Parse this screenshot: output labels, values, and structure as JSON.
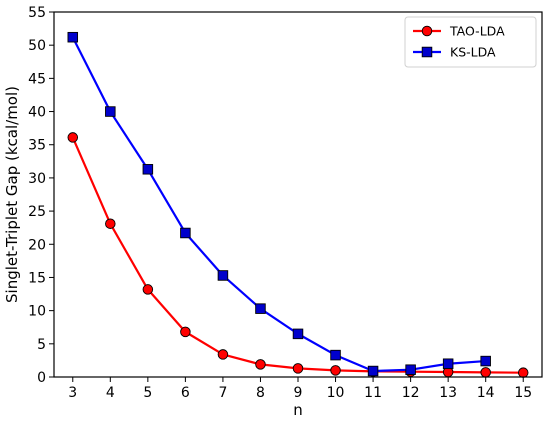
{
  "chart_data": {
    "type": "line",
    "xlabel": "n",
    "ylabel": "Singlet-Triplet Gap (kcal/mol)",
    "xlim": [
      2.5,
      15.5
    ],
    "ylim": [
      0,
      55
    ],
    "xticks": [
      3,
      4,
      5,
      6,
      7,
      8,
      9,
      10,
      11,
      12,
      13,
      14,
      15
    ],
    "yticks": [
      0,
      5,
      10,
      15,
      20,
      25,
      30,
      35,
      40,
      45,
      50,
      55
    ],
    "grid": false,
    "legend_position": "top-right",
    "series": [
      {
        "name": "TAO-LDA",
        "color": "#ff0000",
        "marker": "circle",
        "marker_color": "#ff0000",
        "x": [
          3,
          4,
          5,
          6,
          7,
          8,
          9,
          10,
          11,
          12,
          13,
          14,
          15
        ],
        "values": [
          36.1,
          23.1,
          13.2,
          6.8,
          3.4,
          1.9,
          1.3,
          1.0,
          0.85,
          0.8,
          0.75,
          0.7,
          0.65
        ]
      },
      {
        "name": "KS-LDA",
        "color": "#0000ff",
        "marker": "square",
        "marker_color": "#0000cc",
        "x": [
          3,
          4,
          5,
          6,
          7,
          8,
          9,
          10,
          11,
          12,
          13,
          14
        ],
        "values": [
          51.2,
          40.0,
          31.3,
          21.7,
          15.3,
          10.3,
          6.5,
          3.3,
          0.9,
          1.1,
          2.0,
          2.4
        ]
      }
    ]
  }
}
